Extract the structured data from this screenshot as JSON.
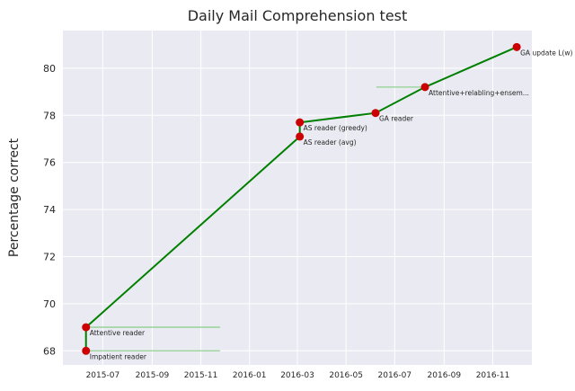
{
  "chart_data": {
    "type": "line",
    "title": "Daily Mail Comprehension test",
    "xlabel": "",
    "ylabel": "Percentage correct",
    "x_axis_type": "date",
    "xlim": [
      "2015-05-12",
      "2016-12-20"
    ],
    "ylim": [
      67.4,
      81.6
    ],
    "yticks": [
      68,
      70,
      72,
      74,
      76,
      78,
      80
    ],
    "xticks": [
      "2015-07",
      "2015-09",
      "2015-11",
      "2016-01",
      "2016-03",
      "2016-05",
      "2016-07",
      "2016-09",
      "2016-11"
    ],
    "grid": true,
    "legend": "none",
    "colors": {
      "background": "#eaeaf2",
      "grid": "#ffffff",
      "line": "#008000",
      "marker": "#cc0000",
      "interval": "#8fd18f"
    },
    "series": [
      {
        "points": [
          {
            "date": "2015-06-10",
            "value": 68.0,
            "label": "Impatient reader",
            "interval_end": "2015-11-25"
          },
          {
            "date": "2015-06-10",
            "value": 69.0,
            "label": "Attentive reader",
            "interval_end": "2015-11-25"
          },
          {
            "date": "2016-03-04",
            "value": 77.1,
            "label": "AS reader (avg)"
          },
          {
            "date": "2016-03-04",
            "value": 77.7,
            "label": "AS reader (greedy)"
          },
          {
            "date": "2016-06-07",
            "value": 78.1,
            "label": "GA reader"
          },
          {
            "date": "2016-08-08",
            "value": 79.2,
            "label": "Attentive+relabling+ensem...",
            "interval_start": "2016-06-08"
          },
          {
            "date": "2016-12-01",
            "value": 80.9,
            "label": "GA update L(w)"
          }
        ]
      }
    ]
  }
}
